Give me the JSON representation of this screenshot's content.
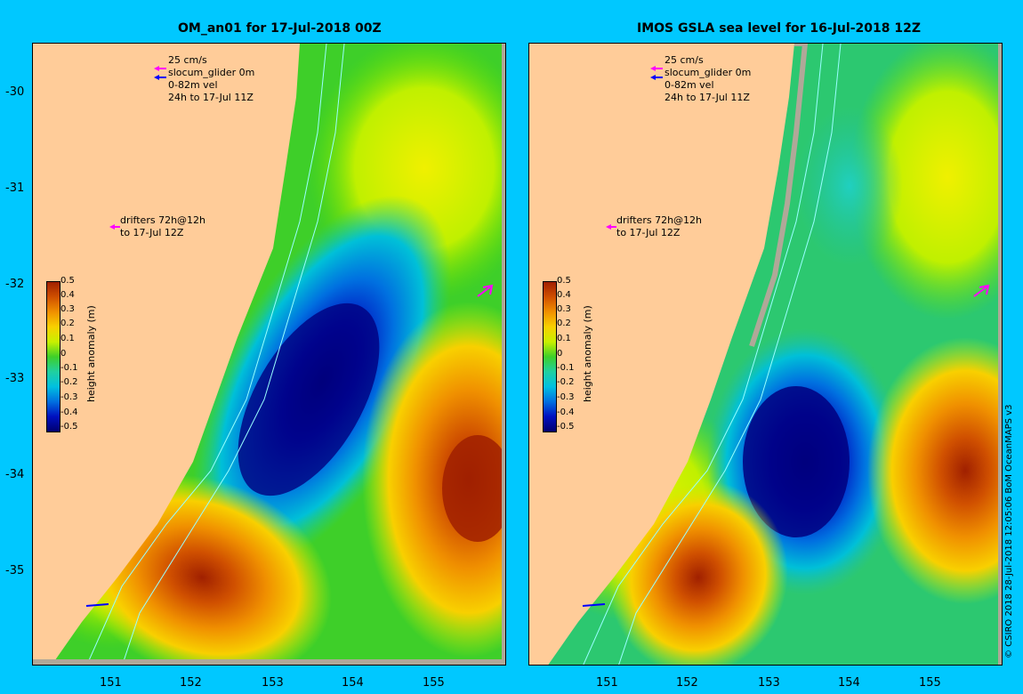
{
  "panels": [
    {
      "title": "OM_an01 for 17-Jul-2018 00Z",
      "legend": {
        "scale": "25 cm/s",
        "glider": "slocum_glider 0m",
        "vel": "0-82m vel",
        "time": "24h to 17-Jul 11Z",
        "drifters_line1": "drifters 72h@12h",
        "drifters_line2": "to 17-Jul 12Z"
      }
    },
    {
      "title": "IMOS GSLA sea level  for 16-Jul-2018 12Z",
      "legend": {
        "scale": "25 cm/s",
        "glider": "slocum_glider 0m",
        "vel": "0-82m vel",
        "time": "24h to 17-Jul 11Z",
        "drifters_line1": "drifters 72h@12h",
        "drifters_line2": "to 17-Jul 12Z"
      }
    }
  ],
  "axes": {
    "lat_labels": [
      "-30",
      "-31",
      "-32",
      "-33",
      "-34",
      "-35"
    ],
    "lon_labels": [
      "151",
      "152",
      "153",
      "154",
      "155"
    ]
  },
  "colorbar": {
    "title": "height anomaly (m)",
    "ticks": [
      "0.5",
      "0.4",
      "0.3",
      "0.2",
      "0.1",
      "0",
      "-0.1",
      "-0.2",
      "-0.3",
      "-0.4",
      "-0.5"
    ]
  },
  "credit": "© CSIRO 2018  28-Jul-2018 12:05:06 BoM OceanMAPS v3",
  "colors": {
    "background": "#00c8ff",
    "land": "#ffcc99",
    "shelf": "#b0a898",
    "neutral": "#3ecf29",
    "positive_max": "#a02000",
    "negative_max": "#000080",
    "glider": "#ff00ff",
    "velocity": "#0000ff"
  }
}
